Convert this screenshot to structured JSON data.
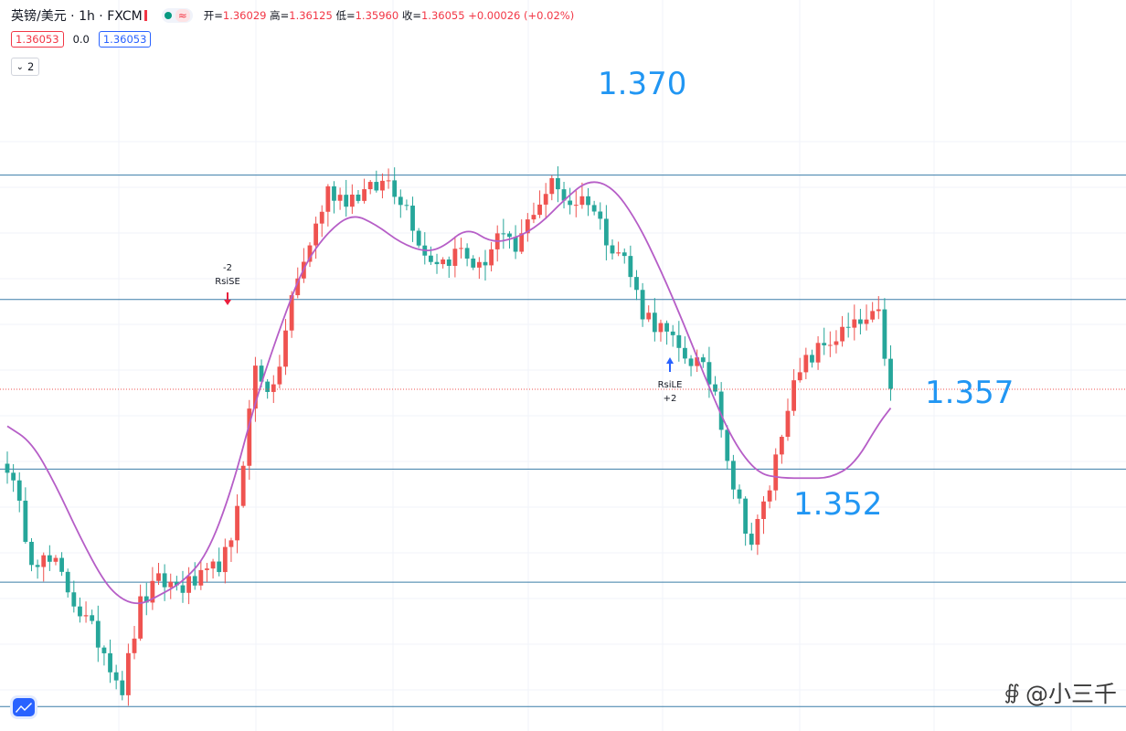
{
  "header": {
    "symbol": "英镑/美元 · 1h · FXCM",
    "open_label": "开=",
    "open": "1.36029",
    "high_label": "高=",
    "high": "1.36125",
    "low_label": "低=",
    "low": "1.35960",
    "close_label": "收=",
    "close": "1.36055",
    "change": "+0.00026 (+0.02%)",
    "pill_icon": "wave-icon"
  },
  "row2": {
    "bid": "1.36053",
    "spread": "0.0",
    "ask": "1.36053"
  },
  "row3": {
    "collapse_icon": "chevron-down-icon",
    "count": "2"
  },
  "colors": {
    "up": "#ef5350",
    "down": "#26a69a",
    "ma": "#b65ec7",
    "level": "#2196f3",
    "price_line": "#ef5350"
  },
  "annotations": {
    "short_signal": {
      "text1": "-2",
      "text2": "RsiSE"
    },
    "long_signal": {
      "text1": "RsiLE",
      "text2": "+2"
    }
  },
  "watermark": "@小三千",
  "chart_data": {
    "type": "candlestick",
    "title": "",
    "instrument": "英镑/美元",
    "timeframe": "1h",
    "current_price": 1.36053,
    "price_range": [
      1.3455,
      1.3737
    ],
    "levels": [
      {
        "value": 1.37,
        "label": "1.370"
      },
      {
        "value": 1.357,
        "label": "1.357"
      },
      {
        "value": 1.352,
        "label": "1.352"
      },
      {
        "value": 1.3645,
        "label": ""
      },
      {
        "value": 1.3465,
        "label": ""
      }
    ],
    "anchors": [
      [
        0,
        1.3572
      ],
      [
        4,
        1.3532
      ],
      [
        8,
        1.3527
      ],
      [
        12,
        1.3507
      ],
      [
        16,
        1.349
      ],
      [
        19,
        1.3473
      ],
      [
        22,
        1.351
      ],
      [
        25,
        1.352
      ],
      [
        29,
        1.3518
      ],
      [
        33,
        1.3522
      ],
      [
        37,
        1.3535
      ],
      [
        39,
        1.3575
      ],
      [
        41,
        1.3615
      ],
      [
        44,
        1.3603
      ],
      [
        47,
        1.3645
      ],
      [
        50,
        1.367
      ],
      [
        53,
        1.3693
      ],
      [
        56,
        1.369
      ],
      [
        60,
        1.3693
      ],
      [
        63,
        1.3698
      ],
      [
        66,
        1.3686
      ],
      [
        69,
        1.3665
      ],
      [
        72,
        1.3662
      ],
      [
        75,
        1.3667
      ],
      [
        78,
        1.3658
      ],
      [
        81,
        1.3673
      ],
      [
        84,
        1.3666
      ],
      [
        87,
        1.3685
      ],
      [
        90,
        1.3696
      ],
      [
        93,
        1.3688
      ],
      [
        96,
        1.369
      ],
      [
        99,
        1.3673
      ],
      [
        102,
        1.3663
      ],
      [
        105,
        1.364
      ],
      [
        108,
        1.3632
      ],
      [
        111,
        1.3622
      ],
      [
        114,
        1.3617
      ],
      [
        117,
        1.3605
      ],
      [
        120,
        1.3563
      ],
      [
        123,
        1.3537
      ],
      [
        126,
        1.3562
      ],
      [
        129,
        1.36
      ],
      [
        132,
        1.3617
      ],
      [
        135,
        1.3625
      ],
      [
        138,
        1.363
      ],
      [
        141,
        1.3634
      ],
      [
        144,
        1.3637
      ],
      [
        146,
        1.36055
      ]
    ],
    "ma_period": 20,
    "ma": [
      [
        0,
        1.3589
      ],
      [
        4,
        1.3582
      ],
      [
        8,
        1.3563
      ],
      [
        12,
        1.354
      ],
      [
        16,
        1.352
      ],
      [
        19,
        1.3512
      ],
      [
        22,
        1.351
      ],
      [
        25,
        1.3514
      ],
      [
        29,
        1.352
      ],
      [
        33,
        1.3532
      ],
      [
        37,
        1.356
      ],
      [
        41,
        1.36
      ],
      [
        45,
        1.3632
      ],
      [
        49,
        1.366
      ],
      [
        53,
        1.3675
      ],
      [
        57,
        1.3683
      ],
      [
        61,
        1.3678
      ],
      [
        65,
        1.367
      ],
      [
        69,
        1.3666
      ],
      [
        72,
        1.3668
      ],
      [
        76,
        1.3677
      ],
      [
        80,
        1.367
      ],
      [
        84,
        1.3672
      ],
      [
        88,
        1.3678
      ],
      [
        92,
        1.3689
      ],
      [
        96,
        1.3698
      ],
      [
        100,
        1.3695
      ],
      [
        104,
        1.368
      ],
      [
        108,
        1.3658
      ],
      [
        112,
        1.3633
      ],
      [
        116,
        1.3606
      ],
      [
        120,
        1.3582
      ],
      [
        124,
        1.3568
      ],
      [
        128,
        1.3566
      ],
      [
        132,
        1.3566
      ],
      [
        136,
        1.3566
      ],
      [
        140,
        1.3572
      ],
      [
        144,
        1.359
      ],
      [
        146,
        1.3597
      ]
    ]
  }
}
